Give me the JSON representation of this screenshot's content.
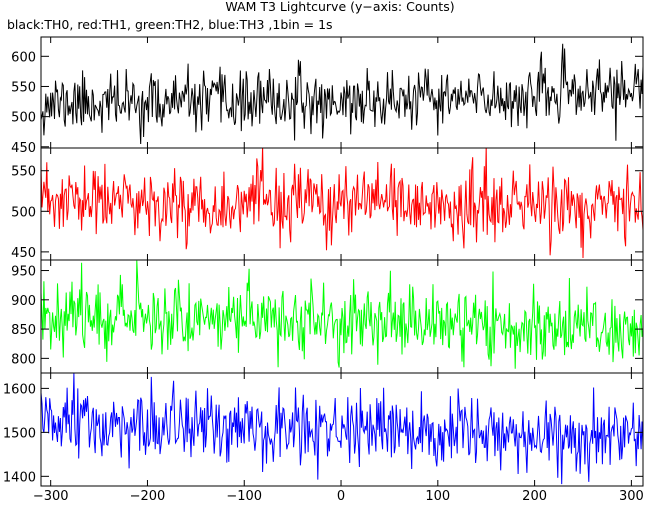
{
  "header": {
    "title": "WAM T3 Lightcurve (y−axis: Counts)",
    "subtitle": "black:TH0, red:TH1, green:TH2, blue:TH3 ,1bin = 1s"
  },
  "chart_data": {
    "type": "line",
    "title": "WAM T3 Lightcurve (y−axis: Counts)",
    "subtitle": "black:TH0, red:TH1, green:TH2, blue:TH3 ,1bin = 1s",
    "xlabel": "",
    "ylabel": "",
    "xlim": [
      -310,
      312
    ],
    "x_ticks": [
      -300,
      -200,
      -100,
      0,
      100,
      200,
      300
    ],
    "x_tick_labels": [
      "−300",
      "−200",
      "−100",
      "0",
      "100",
      "200",
      "300"
    ],
    "bin_seconds": 1,
    "grid": false,
    "legend": "none (series described in subtitle)",
    "panels": [
      {
        "series": "TH0",
        "color": "#000000",
        "ylim": [
          448,
          632
        ],
        "y_ticks": [
          450,
          500,
          550,
          600
        ],
        "baseline": [
          [
            -310,
            522
          ],
          [
            0,
            525
          ],
          [
            150,
            530
          ],
          [
            312,
            546
          ]
        ],
        "noise_sd": 24,
        "seed": 11
      },
      {
        "series": "TH1",
        "color": "#ff0000",
        "ylim": [
          440,
          578
        ],
        "y_ticks": [
          450,
          500,
          550
        ],
        "baseline": [
          [
            -310,
            512
          ],
          [
            0,
            508
          ],
          [
            312,
            505
          ]
        ],
        "noise_sd": 22,
        "seed": 23
      },
      {
        "series": "TH2",
        "color": "#00ff00",
        "ylim": [
          775,
          968
        ],
        "y_ticks": [
          800,
          850,
          900,
          950
        ],
        "baseline": [
          [
            -310,
            878
          ],
          [
            0,
            865
          ],
          [
            312,
            848
          ]
        ],
        "noise_sd": 30,
        "seed": 37
      },
      {
        "series": "TH3",
        "color": "#0000ff",
        "ylim": [
          1378,
          1635
        ],
        "y_ticks": [
          1400,
          1500,
          1600
        ],
        "baseline": [
          [
            -310,
            1520
          ],
          [
            0,
            1500
          ],
          [
            312,
            1482
          ]
        ],
        "noise_sd": 40,
        "seed": 51
      }
    ]
  }
}
